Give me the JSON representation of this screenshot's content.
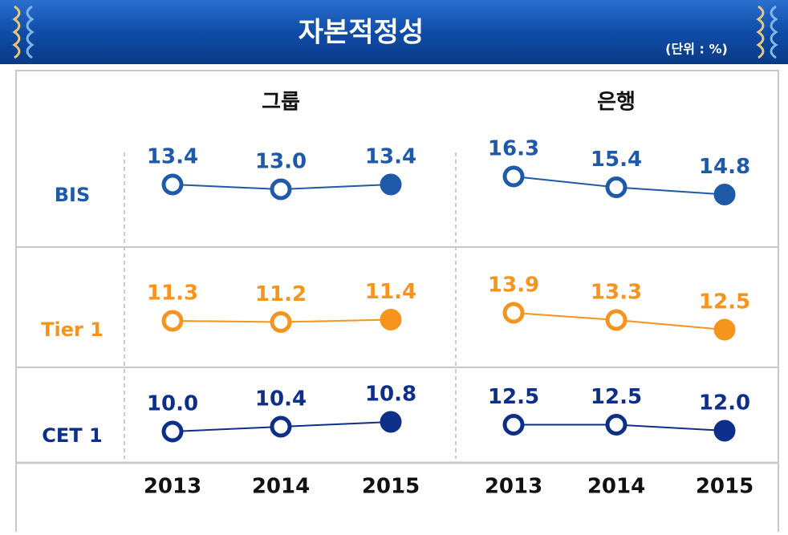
{
  "header": {
    "title": "자본적정성",
    "unit": "(단위 : %)"
  },
  "chart_data": {
    "type": "line",
    "categories": [
      "2013",
      "2014",
      "2015"
    ],
    "rows": [
      {
        "name": "BIS",
        "color": "#1f5aa8"
      },
      {
        "name": "Tier 1",
        "color": "#f7941d"
      },
      {
        "name": "CET 1",
        "color": "#0d2f8a"
      }
    ],
    "panels": [
      {
        "title": "그룹",
        "values": [
          [
            13.4,
            13.0,
            13.4
          ],
          [
            11.3,
            11.2,
            11.4
          ],
          [
            10.0,
            10.4,
            10.8
          ]
        ],
        "value_labels": [
          [
            "13.4",
            "13.0",
            "13.4"
          ],
          [
            "11.3",
            "11.2",
            "11.4"
          ],
          [
            "10.0",
            "10.4",
            "10.8"
          ]
        ]
      },
      {
        "title": "은행",
        "values": [
          [
            16.3,
            15.4,
            14.8
          ],
          [
            13.9,
            13.3,
            12.5
          ],
          [
            12.5,
            12.5,
            12.0
          ]
        ],
        "value_labels": [
          [
            "16.3",
            "15.4",
            "14.8"
          ],
          [
            "13.9",
            "13.3",
            "12.5"
          ],
          [
            "12.5",
            "12.5",
            "12.0"
          ]
        ]
      }
    ]
  }
}
